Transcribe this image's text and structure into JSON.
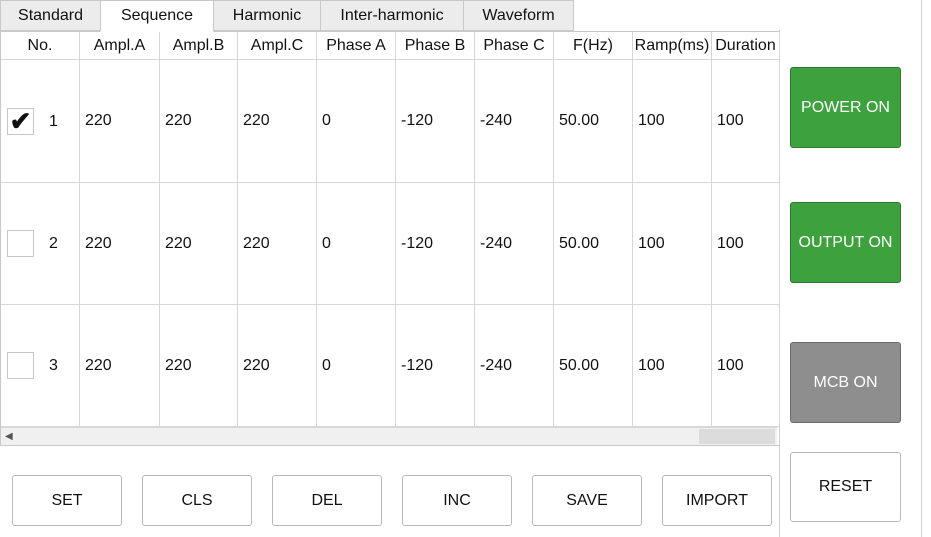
{
  "tabs": [
    "Standard",
    "Sequence",
    "Harmonic",
    "Inter-harmonic",
    "Waveform"
  ],
  "active_tab": 1,
  "table": {
    "columns": [
      "No.",
      "Ampl.A",
      "Ampl.B",
      "Ampl.C",
      "Phase A",
      "Phase B",
      "Phase C",
      "F(Hz)",
      "Ramp(ms)",
      "Duration"
    ],
    "rows": [
      {
        "checked": true,
        "cells": [
          "1",
          "220",
          "220",
          "220",
          "0",
          "-120",
          "-240",
          "50.00",
          "100",
          "100"
        ]
      },
      {
        "checked": false,
        "cells": [
          "2",
          "220",
          "220",
          "220",
          "0",
          "-120",
          "-240",
          "50.00",
          "100",
          "100"
        ]
      },
      {
        "checked": false,
        "cells": [
          "3",
          "220",
          "220",
          "220",
          "0",
          "-120",
          "-240",
          "50.00",
          "100",
          "100"
        ]
      }
    ]
  },
  "buttons": [
    "SET",
    "CLS",
    "DEL",
    "INC",
    "SAVE",
    "IMPORT"
  ],
  "side_buttons": [
    {
      "label": "POWER ON",
      "color": "#3da23d"
    },
    {
      "label": "OUTPUT ON",
      "color": "#3da23d"
    },
    {
      "label": "MCB ON",
      "color": "#8e8e8e"
    },
    {
      "label": "RESET",
      "color": "#ffffff"
    }
  ]
}
